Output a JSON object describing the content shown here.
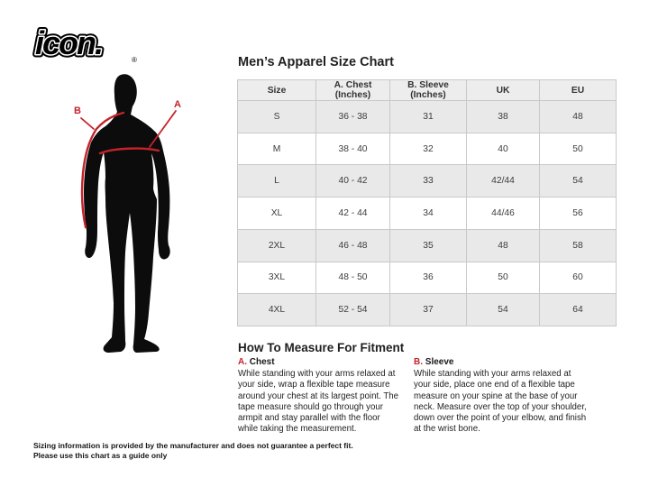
{
  "brand": {
    "logo_text": "icon.",
    "registered_mark": "®"
  },
  "figure": {
    "label_a": "A",
    "label_b": "B"
  },
  "size_chart": {
    "title": "Men’s Apparel Size Chart",
    "columns": [
      "Size",
      "A. Chest (Inches)",
      "B. Sleeve (Inches)",
      "UK",
      "EU"
    ],
    "rows": [
      [
        "S",
        "36 - 38",
        "31",
        "38",
        "48"
      ],
      [
        "M",
        "38 - 40",
        "32",
        "40",
        "50"
      ],
      [
        "L",
        "40 - 42",
        "33",
        "42/44",
        "54"
      ],
      [
        "XL",
        "42 - 44",
        "34",
        "44/46",
        "56"
      ],
      [
        "2XL",
        "46 - 48",
        "35",
        "48",
        "58"
      ],
      [
        "3XL",
        "48 - 50",
        "36",
        "50",
        "60"
      ],
      [
        "4XL",
        "52 - 54",
        "37",
        "54",
        "64"
      ]
    ]
  },
  "how_to_measure": {
    "title": "How To Measure For Fitment",
    "sections": [
      {
        "letter": "A.",
        "name": "Chest",
        "text": "While standing with your arms relaxed at your side, wrap a flexible tape measure around your chest at its largest point. The tape measure should go through your armpit and stay parallel with the floor while taking the measurement."
      },
      {
        "letter": "B.",
        "name": "Sleeve",
        "text": "While standing with your arms relaxed at your side, place one end of a flexible tape measure on your spine at the base of your neck. Measure over the top of your shoulder, down over the point of your elbow, and finish at the wrist bone."
      }
    ]
  },
  "disclaimer": {
    "line1": "Sizing information is provided by the manufacturer and does not guarantee a perfect fit.",
    "line2": "Please use this chart as a guide only"
  },
  "colors": {
    "accent_red": "#c5232b",
    "row_alt_bg": "#e9e9e9",
    "header_bg": "#ededed",
    "table_border": "#c9c9c9",
    "silhouette": "#0c0c0c"
  }
}
